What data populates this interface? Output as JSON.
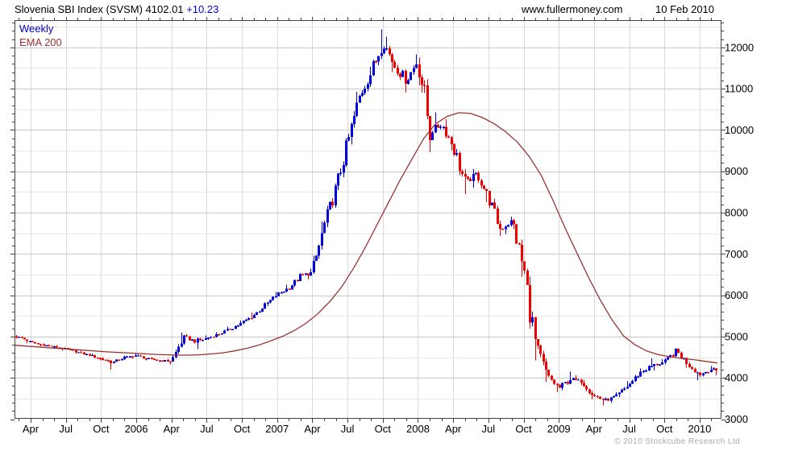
{
  "header": {
    "title_main": "Slovenia SBI Index (SVSM) 4102.01",
    "title_change": "+10.23",
    "site": "www.fullermoney.com",
    "date": "10 Feb 2010"
  },
  "legend": {
    "series1": "Weekly",
    "series2": "EMA 200"
  },
  "footer": {
    "copyright": "© 2010 Stockcube Research Ltd"
  },
  "colors": {
    "up": "#0000dd",
    "down": "#ee0000",
    "ema": "#993333",
    "grid_major": "#c8c8c8",
    "grid_minor": "#e6e6e6",
    "grid_vertical": "#d9d9d9",
    "axis": "#444444",
    "text": "#000000",
    "change_text": "#0000cc",
    "copyright_text": "#aaaaaa"
  },
  "chart_data": {
    "type": "candlestick",
    "title": "Slovenia SBI Index (SVSM)",
    "interval": "Weekly",
    "overlay": "EMA 200",
    "last_price": 4102.01,
    "change": 10.23,
    "date_shown": "10 Feb 2010",
    "x_axis": {
      "start": "2005-02",
      "end": "2010-02",
      "labels": [
        "Apr",
        "Jul",
        "Oct",
        "2006",
        "Apr",
        "Jul",
        "Oct",
        "2007",
        "Apr",
        "Jul",
        "Oct",
        "2008",
        "Apr",
        "Jul",
        "Oct",
        "2009",
        "Apr",
        "Jul",
        "Oct",
        "2010"
      ],
      "minor_ticks": "monthly",
      "major_ticks": "quarterly"
    },
    "y_axis": {
      "min": 3000,
      "max": 12660,
      "tick_labels": [
        "12000",
        "11000",
        "10000",
        "9000",
        "8000",
        "7000",
        "6000",
        "5000",
        "4000",
        "3000"
      ],
      "major_step": 1000,
      "minor_tick_step": 200,
      "grid_step": 500,
      "side": "right"
    },
    "monthly_comment": "columns: [month, close, high, low, ema200]",
    "monthly": [
      [
        "2005-02",
        4990,
        5040,
        4950,
        4790
      ],
      [
        "2005-03",
        4860,
        5000,
        4830,
        4770
      ],
      [
        "2005-04",
        4800,
        4890,
        4760,
        4750
      ],
      [
        "2005-05",
        4750,
        4830,
        4710,
        4730
      ],
      [
        "2005-06",
        4700,
        4790,
        4660,
        4710
      ],
      [
        "2005-07",
        4620,
        4730,
        4590,
        4690
      ],
      [
        "2005-08",
        4550,
        4660,
        4520,
        4670
      ],
      [
        "2005-09",
        4460,
        4590,
        4420,
        4650
      ],
      [
        "2005-10",
        4380,
        4500,
        4200,
        4630
      ],
      [
        "2005-11",
        4500,
        4540,
        4350,
        4615
      ],
      [
        "2005-12",
        4540,
        4590,
        4460,
        4600
      ],
      [
        "2006-01",
        4460,
        4570,
        4420,
        4585
      ],
      [
        "2006-02",
        4420,
        4500,
        4380,
        4570
      ],
      [
        "2006-03",
        4400,
        4460,
        4330,
        4560
      ],
      [
        "2006-04",
        5000,
        5100,
        4390,
        4550
      ],
      [
        "2006-05",
        4880,
        5060,
        4800,
        4550
      ],
      [
        "2006-06",
        4960,
        5030,
        4700,
        4560
      ],
      [
        "2006-07",
        5060,
        5110,
        4920,
        4580
      ],
      [
        "2006-08",
        5190,
        5240,
        5020,
        4610
      ],
      [
        "2006-09",
        5330,
        5390,
        5150,
        4660
      ],
      [
        "2006-10",
        5520,
        5580,
        5290,
        4720
      ],
      [
        "2006-11",
        5770,
        5830,
        5490,
        4800
      ],
      [
        "2006-12",
        6020,
        6080,
        5740,
        4900
      ],
      [
        "2007-01",
        6180,
        6260,
        5980,
        5010
      ],
      [
        "2007-02",
        6470,
        6540,
        6140,
        5150
      ],
      [
        "2007-03",
        6550,
        6650,
        6380,
        5330
      ],
      [
        "2007-04",
        7700,
        7790,
        6520,
        5560
      ],
      [
        "2007-05",
        8600,
        8700,
        7650,
        5850
      ],
      [
        "2007-06",
        9700,
        9800,
        8550,
        6200
      ],
      [
        "2007-07",
        10800,
        10920,
        9650,
        6650
      ],
      [
        "2007-08",
        11400,
        11530,
        10700,
        7150
      ],
      [
        "2007-09",
        12150,
        12430,
        11300,
        7700
      ],
      [
        "2007-10",
        11550,
        12260,
        11400,
        8250
      ],
      [
        "2007-11",
        11200,
        11700,
        10900,
        8800
      ],
      [
        "2007-12",
        11700,
        11830,
        11100,
        9300
      ],
      [
        "2008-01",
        9950,
        11750,
        9460,
        9800
      ],
      [
        "2008-02",
        10150,
        10430,
        9850,
        10150
      ],
      [
        "2008-03",
        9600,
        10260,
        9500,
        10330
      ],
      [
        "2008-04",
        8700,
        9680,
        8450,
        10420
      ],
      [
        "2008-05",
        8950,
        9050,
        8600,
        10400
      ],
      [
        "2008-06",
        8350,
        9000,
        8250,
        10300
      ],
      [
        "2008-07",
        7600,
        8420,
        7430,
        10150
      ],
      [
        "2008-08",
        7800,
        7900,
        7480,
        9950
      ],
      [
        "2008-09",
        6600,
        7850,
        6450,
        9700
      ],
      [
        "2008-10",
        4800,
        6650,
        4420,
        9350
      ],
      [
        "2008-11",
        4050,
        4850,
        3900,
        8900
      ],
      [
        "2008-12",
        3750,
        4100,
        3650,
        8300
      ],
      [
        "2009-01",
        3980,
        4150,
        3700,
        7650
      ],
      [
        "2009-02",
        3900,
        4060,
        3820,
        7050
      ],
      [
        "2009-03",
        3560,
        3950,
        3480,
        6450
      ],
      [
        "2009-04",
        3450,
        3620,
        3330,
        5900
      ],
      [
        "2009-05",
        3580,
        3650,
        3400,
        5420
      ],
      [
        "2009-06",
        3850,
        3920,
        3540,
        5020
      ],
      [
        "2009-07",
        4150,
        4230,
        3820,
        4800
      ],
      [
        "2009-08",
        4300,
        4470,
        4110,
        4650
      ],
      [
        "2009-09",
        4380,
        4450,
        4180,
        4560
      ],
      [
        "2009-10",
        4660,
        4720,
        4330,
        4510
      ],
      [
        "2009-11",
        4330,
        4700,
        4250,
        4470
      ],
      [
        "2009-12",
        4080,
        4380,
        3950,
        4440
      ],
      [
        "2010-01",
        4220,
        4290,
        4020,
        4400
      ],
      [
        "2010-02",
        4102,
        4260,
        4060,
        4360
      ]
    ],
    "legend_position": "top-left",
    "grid": true
  }
}
